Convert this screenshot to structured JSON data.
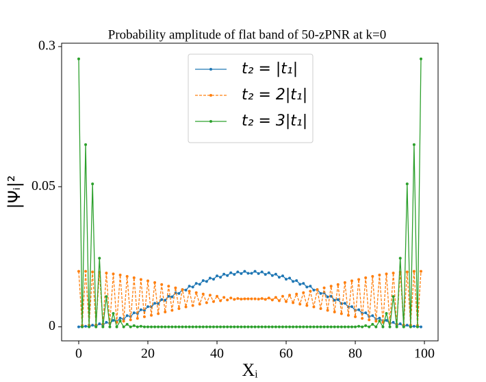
{
  "chart_data": {
    "type": "line",
    "title": "Probability amplitude of flat band of 50-zPNR at k=0",
    "xlabel": "Xᵢ",
    "ylabel": "|Ψᵢ|²",
    "yscale": "piecewise",
    "legend": "upper center",
    "xlim": [
      -4.95,
      103.95
    ],
    "xticks": [
      0,
      20,
      40,
      60,
      80,
      100
    ],
    "ylim": [
      -0.005,
      0.306
    ],
    "yticks": [
      0,
      0.05,
      0.3
    ],
    "x": [
      0,
      1,
      2,
      3,
      4,
      5,
      6,
      7,
      8,
      9,
      10,
      11,
      12,
      13,
      14,
      15,
      16,
      17,
      18,
      19,
      20,
      21,
      22,
      23,
      24,
      25,
      26,
      27,
      28,
      29,
      30,
      31,
      32,
      33,
      34,
      35,
      36,
      37,
      38,
      39,
      40,
      41,
      42,
      43,
      44,
      45,
      46,
      47,
      48,
      49,
      50,
      51,
      52,
      53,
      54,
      55,
      56,
      57,
      58,
      59,
      60,
      61,
      62,
      63,
      64,
      65,
      66,
      67,
      68,
      69,
      70,
      71,
      72,
      73,
      74,
      75,
      76,
      77,
      78,
      79,
      80,
      81,
      82,
      83,
      84,
      85,
      86,
      87,
      88,
      89,
      90,
      91,
      92,
      93,
      94,
      95,
      96,
      97,
      98,
      99
    ],
    "series": [
      {
        "name": "t₂ = |t₁|",
        "color": "#1f77b4",
        "linestyle": "solid",
        "values": [
          0,
          0.0001,
          0.0002,
          0.0001,
          0.0006,
          0.0002,
          0.0011,
          0.0006,
          0.0016,
          0.0012,
          0.0023,
          0.0019,
          0.0031,
          0.0027,
          0.004,
          0.0037,
          0.005,
          0.0048,
          0.0061,
          0.0059,
          0.0072,
          0.0071,
          0.0084,
          0.0083,
          0.0097,
          0.0095,
          0.0109,
          0.0107,
          0.0121,
          0.0119,
          0.0133,
          0.0131,
          0.0145,
          0.0142,
          0.0155,
          0.0152,
          0.0165,
          0.0162,
          0.0174,
          0.017,
          0.0182,
          0.0177,
          0.0188,
          0.0183,
          0.0193,
          0.0187,
          0.0196,
          0.019,
          0.0198,
          0.0191,
          0.0191,
          0.0198,
          0.019,
          0.0196,
          0.0187,
          0.0193,
          0.0183,
          0.0188,
          0.0177,
          0.0182,
          0.017,
          0.0174,
          0.0162,
          0.0165,
          0.0152,
          0.0155,
          0.0142,
          0.0145,
          0.0131,
          0.0133,
          0.0119,
          0.0121,
          0.0107,
          0.0109,
          0.0095,
          0.0097,
          0.0083,
          0.0084,
          0.0071,
          0.0072,
          0.0059,
          0.0061,
          0.0048,
          0.005,
          0.0037,
          0.004,
          0.0027,
          0.0031,
          0.0019,
          0.0023,
          0.0012,
          0.0016,
          0.0006,
          0.0011,
          0.0002,
          0.0006,
          0.0001,
          0.0002,
          0.0001,
          0
        ]
      },
      {
        "name": "t₂ = 2|t₁|",
        "color": "#ff7f0e",
        "linestyle": "dashed",
        "values": [
          0.0198,
          0.0005,
          0.0198,
          0.0006,
          0.0196,
          0.0007,
          0.0195,
          0.001,
          0.0192,
          0.0013,
          0.0189,
          0.0016,
          0.0185,
          0.002,
          0.018,
          0.0025,
          0.0175,
          0.003,
          0.0169,
          0.0036,
          0.0164,
          0.0041,
          0.0158,
          0.0047,
          0.0151,
          0.0053,
          0.0145,
          0.0059,
          0.0139,
          0.0065,
          0.0133,
          0.0071,
          0.0127,
          0.0076,
          0.0122,
          0.0081,
          0.0117,
          0.0086,
          0.0113,
          0.009,
          0.0109,
          0.0093,
          0.0105,
          0.0096,
          0.0103,
          0.0098,
          0.0101,
          0.0099,
          0.01,
          0.01,
          0.01,
          0.01,
          0.0099,
          0.0101,
          0.0098,
          0.0103,
          0.0096,
          0.0105,
          0.0093,
          0.0109,
          0.009,
          0.0113,
          0.0086,
          0.0117,
          0.0081,
          0.0122,
          0.0076,
          0.0127,
          0.0071,
          0.0133,
          0.0065,
          0.0139,
          0.0059,
          0.0145,
          0.0053,
          0.0151,
          0.0047,
          0.0158,
          0.0041,
          0.0164,
          0.0036,
          0.0169,
          0.003,
          0.0175,
          0.0025,
          0.018,
          0.002,
          0.0185,
          0.0016,
          0.0189,
          0.0013,
          0.0192,
          0.001,
          0.0195,
          0.0007,
          0.0196,
          0.0006,
          0.0198,
          0.0005,
          0.0198
        ]
      },
      {
        "name": "t₂ = 3|t₁|",
        "color": "#2ca02c",
        "linestyle": "solid",
        "values": [
          0.278,
          0,
          0.125,
          0,
          0.055,
          0,
          0.0245,
          0,
          0.0108,
          0,
          0.0048,
          0,
          0.0021,
          0,
          0.0009,
          0,
          0.0004,
          0,
          0.0002,
          0,
          0,
          0,
          0,
          0,
          0,
          0,
          0,
          0,
          0,
          0,
          0,
          0,
          0,
          0,
          0,
          0,
          0,
          0,
          0,
          0,
          0,
          0,
          0,
          0,
          0,
          0,
          0,
          0,
          0,
          0,
          0,
          0,
          0,
          0,
          0,
          0,
          0,
          0,
          0,
          0,
          0,
          0,
          0,
          0,
          0,
          0,
          0,
          0,
          0,
          0,
          0,
          0,
          0,
          0,
          0,
          0,
          0,
          0,
          0,
          0,
          0,
          0.0002,
          0,
          0.0004,
          0,
          0.0009,
          0,
          0.0021,
          0,
          0.0048,
          0,
          0.0108,
          0,
          0.0245,
          0,
          0.055,
          0,
          0.125,
          0,
          0.278
        ]
      }
    ]
  }
}
